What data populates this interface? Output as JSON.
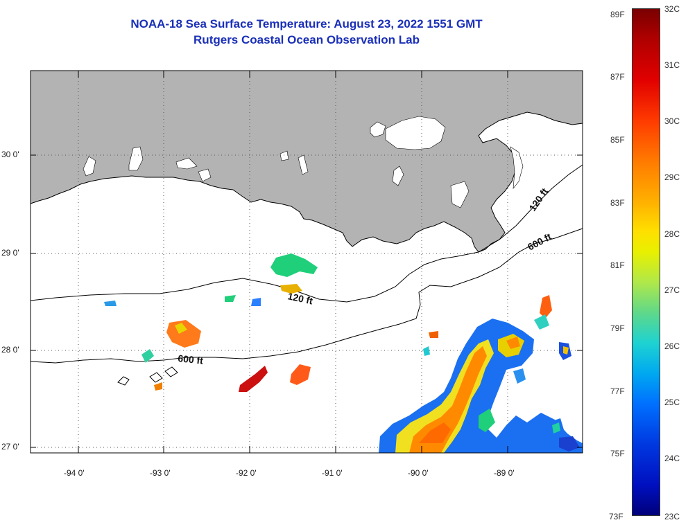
{
  "title": {
    "line1": "NOAA-18 Sea Surface Temperature:  August 23, 2022 1551 GMT",
    "line2": "Rutgers Coastal Ocean Observation Lab"
  },
  "map": {
    "lon_labels": [
      "-94 0'",
      "-93 0'",
      "-92 0'",
      "-91 0'",
      "-90 0'",
      "-89 0'"
    ],
    "lat_labels": [
      "30 0'",
      "29 0'",
      "28 0'",
      "27 0'"
    ],
    "contours": [
      "120 ft",
      "600 ft",
      "120 ft",
      "600 ft"
    ],
    "land_color": "#b3b3b3"
  },
  "colorbar": {
    "fahrenheit": [
      "89F",
      "87F",
      "85F",
      "83F",
      "81F",
      "79F",
      "77F",
      "75F",
      "73F"
    ],
    "celsius": [
      "32C",
      "31C",
      "30C",
      "29C",
      "28C",
      "27C",
      "26C",
      "25C",
      "24C",
      "23C"
    ]
  }
}
